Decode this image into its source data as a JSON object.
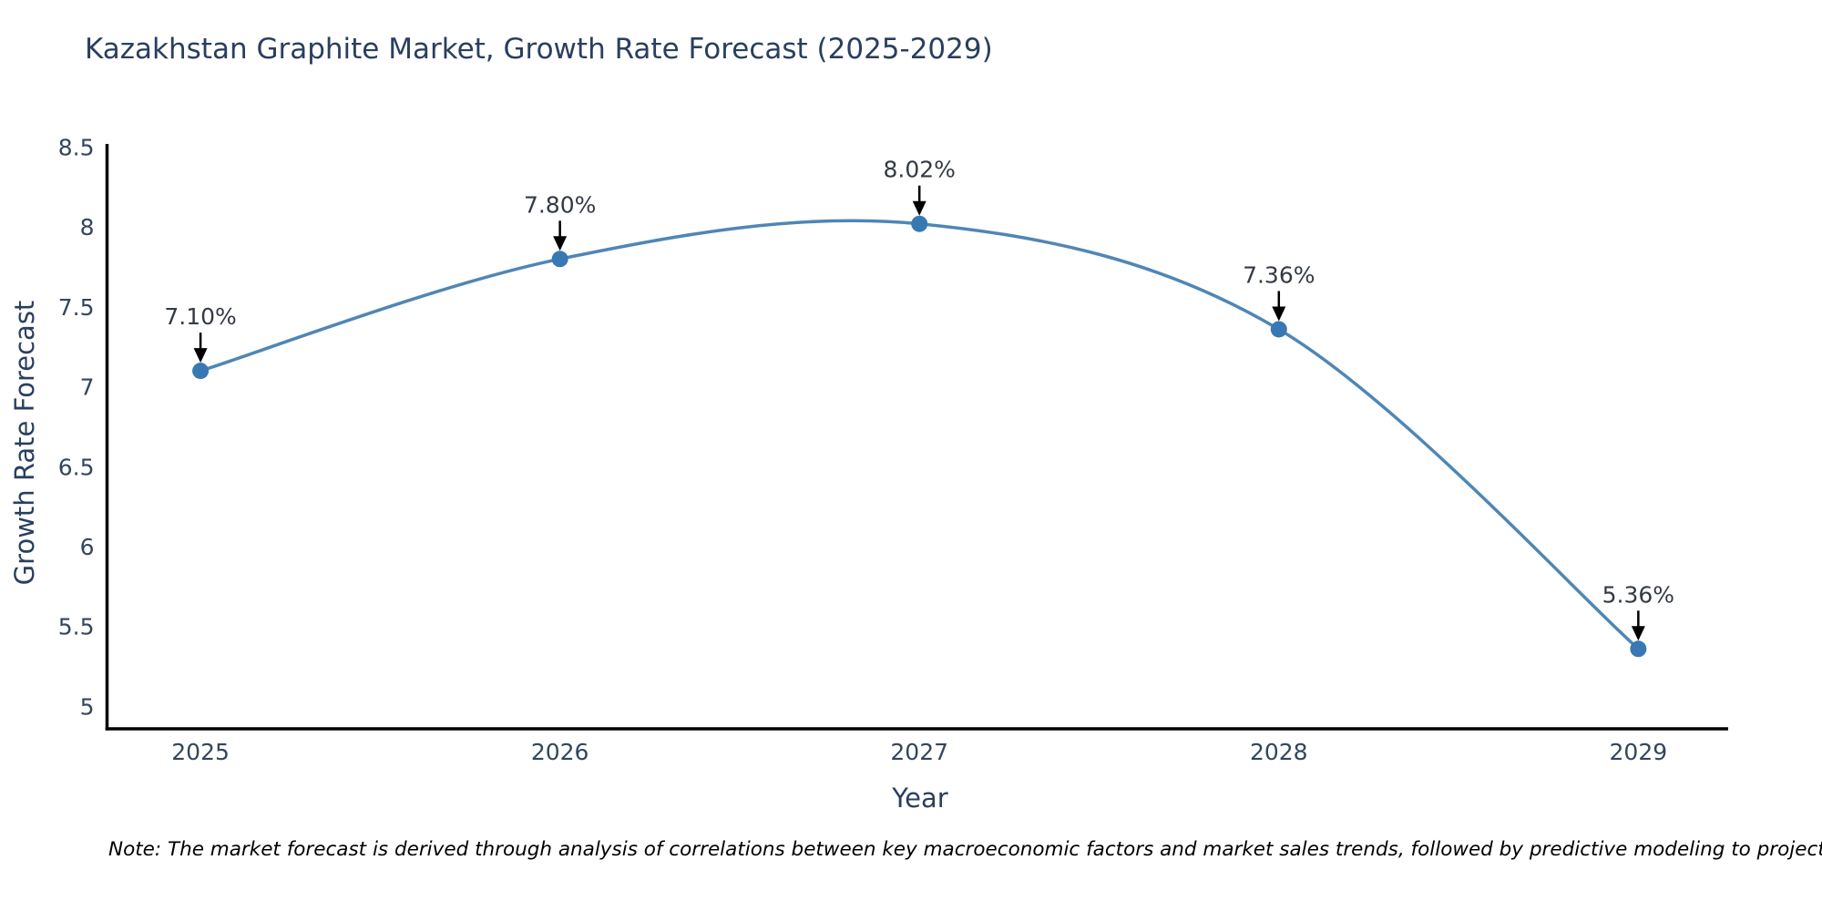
{
  "title": "Kazakhstan Graphite Market, Growth Rate Forecast (2025-2029)",
  "note": "Note: The market forecast is derived through analysis of correlations between key macroeconomic factors and market sales trends, followed by predictive modeling to project future sales",
  "chart_data": {
    "type": "line",
    "line_shape": "spline",
    "title": "Kazakhstan Graphite Market, Growth Rate Forecast (2025-2029)",
    "xlabel": "Year",
    "ylabel": "Growth Rate Forecast",
    "x": [
      2025,
      2026,
      2027,
      2028,
      2029
    ],
    "values": [
      7.1,
      7.8,
      8.02,
      7.36,
      5.36
    ],
    "point_labels": [
      "7.10%",
      "7.80%",
      "8.02%",
      "7.36%",
      "5.36%"
    ],
    "x_ticks": [
      2025,
      2026,
      2027,
      2028,
      2029
    ],
    "y_ticks": [
      8.5,
      8,
      7.5,
      7,
      6.5,
      6,
      5.5,
      5
    ],
    "xlim": [
      2024.74,
      2029.25
    ],
    "ylim": [
      4.86,
      8.52
    ],
    "grid": false,
    "legend": "none",
    "annotations_style": "label-above-with-down-arrow",
    "colors": {
      "line": "#4f86b5",
      "marker": "#3878b3",
      "axis": "#000000",
      "arrow": "#000000",
      "title_text": "#2a3f5f",
      "tick_text": "#33465e",
      "annotation_text": "#333a45",
      "note_text": "#000000",
      "background": "#ffffff"
    }
  }
}
